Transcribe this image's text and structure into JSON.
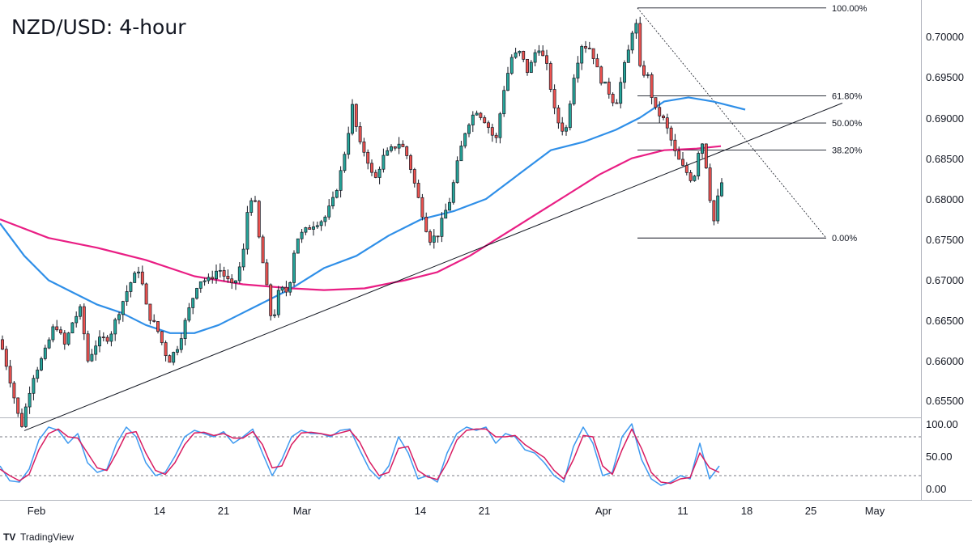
{
  "title": "NZD/USD: 4-hour",
  "branding": "TradingView",
  "colors": {
    "bull": "#26a69a",
    "bear": "#ef5350",
    "candle_border": "#131722",
    "ma_fast": "#2f8fe8",
    "ma_slow": "#e91e84",
    "stoch_k": "#3e9af0",
    "stoch_d": "#d81b60",
    "trendline": "#131722"
  },
  "chart_data": [
    {
      "type": "candlestick",
      "title": "NZD/USD: 4-hour",
      "ylim": [
        0.651,
        0.704
      ],
      "y_ticks": [
        "0.70000",
        "0.69500",
        "0.69000",
        "0.68500",
        "0.68000",
        "0.67500",
        "0.67000",
        "0.66500",
        "0.66000",
        "0.65500"
      ],
      "x_ticks": [
        "Feb",
        "14",
        "21",
        "Mar",
        "14",
        "21",
        "Apr",
        "11",
        "18",
        "25",
        "May"
      ],
      "price_path": [
        [
          0,
          0.6627
        ],
        [
          12,
          0.658
        ],
        [
          26,
          0.6518
        ],
        [
          40,
          0.658
        ],
        [
          55,
          0.661
        ],
        [
          68,
          0.6648
        ],
        [
          80,
          0.662
        ],
        [
          90,
          0.665
        ],
        [
          100,
          0.6665
        ],
        [
          108,
          0.66
        ],
        [
          120,
          0.6625
        ],
        [
          135,
          0.663
        ],
        [
          148,
          0.6665
        ],
        [
          160,
          0.6695
        ],
        [
          172,
          0.6715
        ],
        [
          182,
          0.666
        ],
        [
          194,
          0.664
        ],
        [
          208,
          0.66
        ],
        [
          220,
          0.662
        ],
        [
          232,
          0.666
        ],
        [
          245,
          0.67
        ],
        [
          258,
          0.67
        ],
        [
          270,
          0.6715
        ],
        [
          288,
          0.669
        ],
        [
          300,
          0.673
        ],
        [
          306,
          0.679
        ],
        [
          313,
          0.681
        ],
        [
          320,
          0.675
        ],
        [
          328,
          0.67
        ],
        [
          336,
          0.6645
        ],
        [
          345,
          0.669
        ],
        [
          356,
          0.6685
        ],
        [
          365,
          0.675
        ],
        [
          376,
          0.676
        ],
        [
          388,
          0.677
        ],
        [
          400,
          0.6775
        ],
        [
          412,
          0.68
        ],
        [
          420,
          0.683
        ],
        [
          428,
          0.687
        ],
        [
          436,
          0.692
        ],
        [
          442,
          0.687
        ],
        [
          452,
          0.6855
        ],
        [
          462,
          0.682
        ],
        [
          472,
          0.685
        ],
        [
          482,
          0.686
        ],
        [
          494,
          0.687
        ],
        [
          504,
          0.685
        ],
        [
          514,
          0.681
        ],
        [
          522,
          0.678
        ],
        [
          530,
          0.675
        ],
        [
          540,
          0.6755
        ],
        [
          548,
          0.678
        ],
        [
          556,
          0.68
        ],
        [
          566,
          0.685
        ],
        [
          576,
          0.689
        ],
        [
          588,
          0.691
        ],
        [
          600,
          0.6895
        ],
        [
          612,
          0.687
        ],
        [
          622,
          0.6935
        ],
        [
          632,
          0.6975
        ],
        [
          642,
          0.698
        ],
        [
          652,
          0.6955
        ],
        [
          664,
          0.699
        ],
        [
          676,
          0.696
        ],
        [
          686,
          0.69
        ],
        [
          698,
          0.688
        ],
        [
          708,
          0.695
        ],
        [
          718,
          0.699
        ],
        [
          730,
          0.6985
        ],
        [
          740,
          0.695
        ],
        [
          750,
          0.6935
        ],
        [
          760,
          0.6915
        ],
        [
          770,
          0.696
        ],
        [
          778,
          0.699
        ],
        [
          784,
          0.703
        ],
        [
          790,
          0.696
        ],
        [
          800,
          0.695
        ],
        [
          808,
          0.691
        ],
        [
          818,
          0.69
        ],
        [
          826,
          0.688
        ],
        [
          834,
          0.6855
        ],
        [
          842,
          0.684
        ],
        [
          850,
          0.683
        ],
        [
          856,
          0.682
        ],
        [
          860,
          0.685
        ],
        [
          866,
          0.6875
        ],
        [
          872,
          0.684
        ],
        [
          878,
          0.679
        ],
        [
          882,
          0.677
        ],
        [
          886,
          0.68
        ],
        [
          891,
          0.682
        ]
      ],
      "series": [
        {
          "name": "",
          "path": [
            [
              0,
              0.677
            ],
            [
              30,
              0.673
            ],
            [
              60,
              0.67
            ],
            [
              90,
              0.6685
            ],
            [
              120,
              0.667
            ],
            [
              150,
              0.666
            ],
            [
              180,
              0.6645
            ],
            [
              210,
              0.6635
            ],
            [
              240,
              0.6635
            ],
            [
              270,
              0.6645
            ],
            [
              300,
              0.666
            ],
            [
              330,
              0.6675
            ],
            [
              360,
              0.669
            ],
            [
              400,
              0.6715
            ],
            [
              440,
              0.673
            ],
            [
              480,
              0.6755
            ],
            [
              520,
              0.6775
            ],
            [
              560,
              0.6785
            ],
            [
              600,
              0.68
            ],
            [
              640,
              0.683
            ],
            [
              680,
              0.686
            ],
            [
              720,
              0.687
            ],
            [
              760,
              0.6885
            ],
            [
              790,
              0.69
            ],
            [
              820,
              0.692
            ],
            [
              850,
              0.6925
            ],
            [
              880,
              0.692
            ],
            [
              900,
              0.6915
            ],
            [
              920,
              0.691
            ]
          ]
        },
        {
          "name": "",
          "path": [
            [
              0,
              0.6775
            ],
            [
              60,
              0.6752
            ],
            [
              120,
              0.674
            ],
            [
              180,
              0.6725
            ],
            [
              240,
              0.6705
            ],
            [
              300,
              0.6695
            ],
            [
              360,
              0.669
            ],
            [
              400,
              0.6688
            ],
            [
              450,
              0.669
            ],
            [
              500,
              0.67
            ],
            [
              540,
              0.671
            ],
            [
              580,
              0.673
            ],
            [
              620,
              0.6755
            ],
            [
              660,
              0.678
            ],
            [
              700,
              0.6805
            ],
            [
              740,
              0.683
            ],
            [
              780,
              0.685
            ],
            [
              820,
              0.686
            ],
            [
              860,
              0.6862
            ],
            [
              890,
              0.6865
            ]
          ]
        }
      ],
      "trendline": [
        [
          30,
          0.6515
        ],
        [
          1040,
          0.6918
        ]
      ],
      "fibonacci": {
        "high": 0.7035,
        "low": 0.6752,
        "levels": [
          {
            "label": "100.00%",
            "ratio": 1.0
          },
          {
            "label": "61.80%",
            "ratio": 0.618
          },
          {
            "label": "50.00%",
            "ratio": 0.5
          },
          {
            "label": "38.20%",
            "ratio": 0.382
          },
          {
            "label": "0.00%",
            "ratio": 0.0
          }
        ]
      }
    },
    {
      "type": "line",
      "title": "",
      "ylim": [
        0,
        100
      ],
      "y_ticks": [
        "100.00",
        "50.00",
        "0.00"
      ],
      "levels": [
        80,
        20
      ],
      "series": [
        {
          "name": "",
          "path": [
            [
              0,
              35
            ],
            [
              12,
              12
            ],
            [
              24,
              10
            ],
            [
              36,
              30
            ],
            [
              48,
              75
            ],
            [
              60,
              95
            ],
            [
              72,
              90
            ],
            [
              84,
              70
            ],
            [
              96,
              85
            ],
            [
              108,
              40
            ],
            [
              120,
              25
            ],
            [
              132,
              30
            ],
            [
              144,
              70
            ],
            [
              156,
              95
            ],
            [
              168,
              80
            ],
            [
              180,
              40
            ],
            [
              192,
              20
            ],
            [
              204,
              25
            ],
            [
              216,
              50
            ],
            [
              228,
              80
            ],
            [
              240,
              90
            ],
            [
              252,
              85
            ],
            [
              264,
              80
            ],
            [
              276,
              88
            ],
            [
              288,
              70
            ],
            [
              300,
              80
            ],
            [
              312,
              92
            ],
            [
              324,
              55
            ],
            [
              336,
              20
            ],
            [
              348,
              45
            ],
            [
              360,
              80
            ],
            [
              372,
              90
            ],
            [
              384,
              85
            ],
            [
              396,
              85
            ],
            [
              408,
              80
            ],
            [
              420,
              90
            ],
            [
              432,
              92
            ],
            [
              444,
              60
            ],
            [
              456,
              30
            ],
            [
              468,
              15
            ],
            [
              480,
              35
            ],
            [
              492,
              80
            ],
            [
              504,
              55
            ],
            [
              516,
              15
            ],
            [
              528,
              20
            ],
            [
              540,
              10
            ],
            [
              552,
              55
            ],
            [
              564,
              85
            ],
            [
              576,
              95
            ],
            [
              588,
              90
            ],
            [
              600,
              95
            ],
            [
              612,
              70
            ],
            [
              624,
              85
            ],
            [
              636,
              80
            ],
            [
              648,
              60
            ],
            [
              660,
              55
            ],
            [
              672,
              40
            ],
            [
              684,
              20
            ],
            [
              696,
              10
            ],
            [
              708,
              65
            ],
            [
              720,
              95
            ],
            [
              732,
              70
            ],
            [
              744,
              20
            ],
            [
              756,
              25
            ],
            [
              768,
              80
            ],
            [
              780,
              100
            ],
            [
              792,
              45
            ],
            [
              804,
              15
            ],
            [
              816,
              5
            ],
            [
              828,
              10
            ],
            [
              840,
              20
            ],
            [
              852,
              15
            ],
            [
              864,
              70
            ],
            [
              876,
              15
            ],
            [
              888,
              35
            ]
          ]
        },
        {
          "name": "",
          "path": [
            [
              0,
              30
            ],
            [
              12,
              20
            ],
            [
              24,
              12
            ],
            [
              36,
              22
            ],
            [
              48,
              60
            ],
            [
              60,
              85
            ],
            [
              72,
              92
            ],
            [
              84,
              80
            ],
            [
              96,
              78
            ],
            [
              108,
              55
            ],
            [
              120,
              32
            ],
            [
              132,
              28
            ],
            [
              144,
              55
            ],
            [
              156,
              85
            ],
            [
              168,
              88
            ],
            [
              180,
              55
            ],
            [
              192,
              28
            ],
            [
              204,
              22
            ],
            [
              216,
              40
            ],
            [
              228,
              68
            ],
            [
              240,
              86
            ],
            [
              252,
              87
            ],
            [
              264,
              82
            ],
            [
              276,
              85
            ],
            [
              288,
              78
            ],
            [
              300,
              78
            ],
            [
              312,
              88
            ],
            [
              324,
              68
            ],
            [
              336,
              32
            ],
            [
              348,
              35
            ],
            [
              360,
              68
            ],
            [
              372,
              86
            ],
            [
              384,
              87
            ],
            [
              396,
              85
            ],
            [
              408,
              82
            ],
            [
              420,
              86
            ],
            [
              432,
              90
            ],
            [
              444,
              72
            ],
            [
              456,
              42
            ],
            [
              468,
              20
            ],
            [
              480,
              25
            ],
            [
              492,
              62
            ],
            [
              504,
              65
            ],
            [
              516,
              28
            ],
            [
              528,
              18
            ],
            [
              540,
              14
            ],
            [
              552,
              40
            ],
            [
              564,
              75
            ],
            [
              576,
              90
            ],
            [
              588,
              92
            ],
            [
              600,
              92
            ],
            [
              612,
              80
            ],
            [
              624,
              80
            ],
            [
              636,
              82
            ],
            [
              648,
              68
            ],
            [
              660,
              58
            ],
            [
              672,
              48
            ],
            [
              684,
              28
            ],
            [
              696,
              15
            ],
            [
              708,
              45
            ],
            [
              720,
              82
            ],
            [
              732,
              80
            ],
            [
              744,
              35
            ],
            [
              756,
              22
            ],
            [
              768,
              60
            ],
            [
              780,
              92
            ],
            [
              792,
              62
            ],
            [
              804,
              25
            ],
            [
              816,
              10
            ],
            [
              828,
              8
            ],
            [
              840,
              15
            ],
            [
              852,
              17
            ],
            [
              864,
              55
            ],
            [
              876,
              32
            ],
            [
              888,
              25
            ]
          ]
        }
      ]
    }
  ]
}
